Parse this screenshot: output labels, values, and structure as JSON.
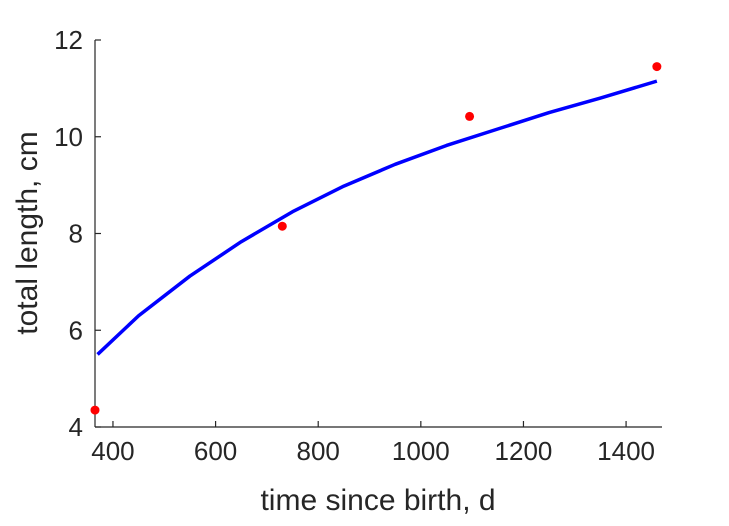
{
  "chart_data": {
    "type": "scatter",
    "xlabel": "time since birth, d",
    "ylabel": "total length, cm",
    "xlim": [
      365,
      1470
    ],
    "ylim": [
      4,
      12
    ],
    "xticks": [
      400,
      600,
      800,
      1000,
      1200,
      1400
    ],
    "yticks": [
      4,
      6,
      8,
      10,
      12
    ],
    "grid": false,
    "series": [
      {
        "kind": "points",
        "color": "#ff0000",
        "x": [
          365,
          730,
          1095,
          1460
        ],
        "y": [
          4.35,
          8.15,
          10.42,
          11.45
        ]
      },
      {
        "kind": "line",
        "color": "#0000ff",
        "x": [
          370,
          450,
          550,
          650,
          750,
          850,
          950,
          1050,
          1150,
          1250,
          1350,
          1460
        ],
        "y": [
          5.5,
          6.3,
          7.12,
          7.83,
          8.45,
          8.98,
          9.43,
          9.82,
          10.16,
          10.5,
          10.8,
          11.15
        ]
      }
    ]
  }
}
